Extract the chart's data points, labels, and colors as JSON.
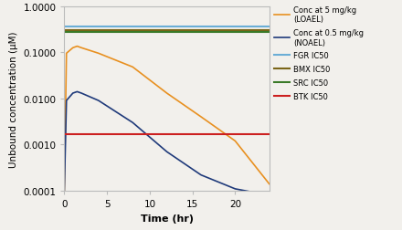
{
  "title": "",
  "xlabel": "Time (hr)",
  "ylabel": "Unbound concentration (μM)",
  "ylim_log": [
    0.0001,
    1.0
  ],
  "xlim": [
    0,
    24
  ],
  "xticks": [
    0,
    5,
    10,
    15,
    20
  ],
  "conc_5mgkg_time": [
    0,
    0.25,
    1.0,
    1.5,
    2.0,
    4.0,
    8.0,
    12.0,
    16.0,
    20.0,
    24.0
  ],
  "conc_5mgkg_vals": [
    0.0001,
    0.095,
    0.125,
    0.135,
    0.125,
    0.095,
    0.048,
    0.013,
    0.004,
    0.0012,
    0.00014
  ],
  "conc_05mgkg_time": [
    0,
    0.25,
    1.0,
    1.5,
    2.0,
    4.0,
    8.0,
    12.0,
    16.0,
    20.0,
    24.0
  ],
  "conc_05mgkg_vals": [
    0.0001,
    0.009,
    0.013,
    0.014,
    0.013,
    0.009,
    0.003,
    0.0007,
    0.00022,
    0.00011,
    8e-05
  ],
  "FGR_IC50": 0.36,
  "BMX_IC50": 0.305,
  "SRC_IC50": 0.27,
  "BTK_IC50": 0.00165,
  "color_5mgkg": "#E89020",
  "color_05mgkg": "#1F3A7A",
  "color_FGR": "#6BAED6",
  "color_BMX": "#7B6518",
  "color_SRC": "#3A7A28",
  "color_BTK": "#CC2020",
  "legend_labels": [
    "Conc at 5 mg/kg\n(LOAEL)",
    "Conc at 0.5 mg/kg\n(NOAEL)",
    "FGR IC50",
    "BMX IC50",
    "SRC IC50",
    "BTK IC50"
  ],
  "bg_color": "#F2F0EC",
  "ytick_labels": [
    "0.0001",
    "0.0010",
    "0.0100",
    "0.1000",
    "1.0000"
  ]
}
